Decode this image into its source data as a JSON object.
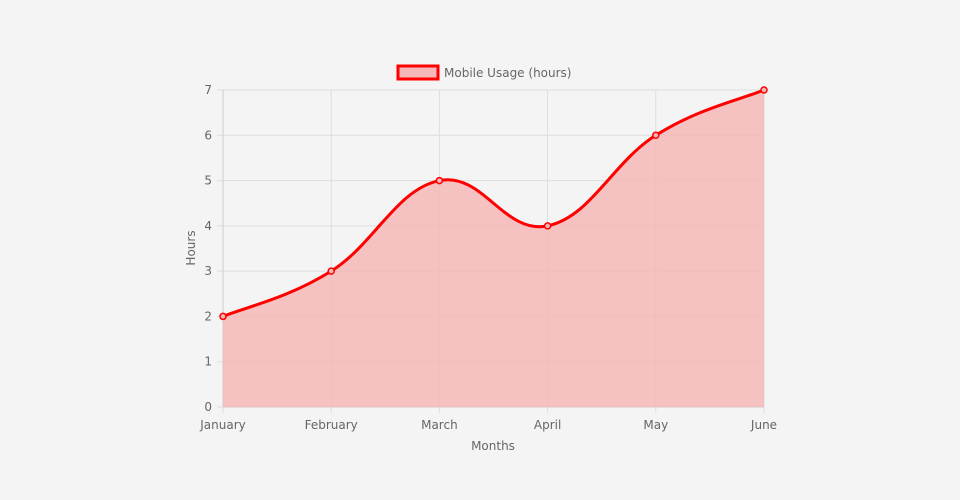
{
  "chart_data": {
    "type": "area",
    "categories": [
      "January",
      "February",
      "March",
      "April",
      "May",
      "June"
    ],
    "series": [
      {
        "name": "Mobile Usage (hours)",
        "values": [
          2,
          3,
          5,
          4,
          6,
          7
        ]
      }
    ],
    "xlabel": "Months",
    "ylabel": "Hours",
    "ylim": [
      0,
      7
    ],
    "yticks": [
      "0",
      "1",
      "2",
      "3",
      "4",
      "5",
      "6",
      "7"
    ],
    "grid": true,
    "legend_position": "top",
    "colors": {
      "line": "#ff0000",
      "fill": "#f5b7b7",
      "grid": "#dddddd",
      "background": "#f4f4f4"
    }
  }
}
